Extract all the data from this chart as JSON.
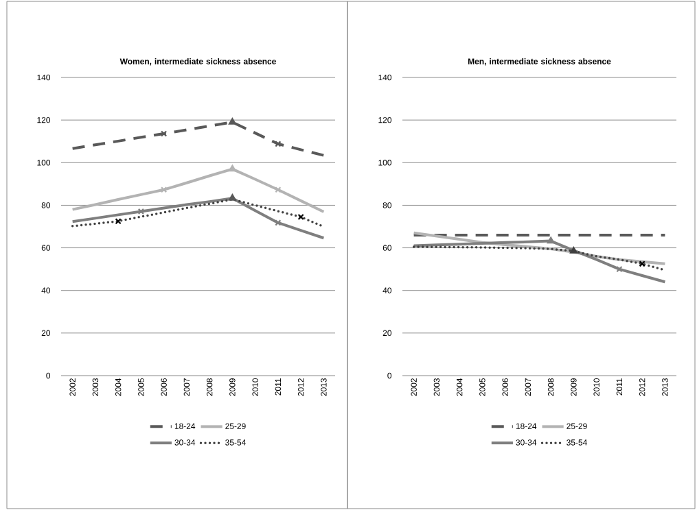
{
  "chart_data": [
    {
      "type": "line",
      "title": "Women, intermediate sickness absence",
      "categories": [
        "2002",
        "2003",
        "2004",
        "2005",
        "2006",
        "2007",
        "2008",
        "2009",
        "2010",
        "2011",
        "2012",
        "2013"
      ],
      "ylim": [
        0,
        140
      ],
      "yticks": [
        0,
        20,
        40,
        60,
        80,
        100,
        120,
        140
      ],
      "grid": "y",
      "legend": "bottom",
      "series": [
        {
          "name": "18-24",
          "color": "#595959",
          "line_style": "dashed",
          "values": [
            106.6,
            108.4,
            110.1,
            111.9,
            113.6,
            115.4,
            117.2,
            119.0,
            113.9,
            108.8,
            106.1,
            103.4
          ]
        },
        {
          "name": "25-29",
          "color": "#b3b3b3",
          "line_style": "solid",
          "values": [
            78.0,
            80.3,
            82.7,
            85.0,
            87.3,
            90.5,
            93.8,
            97.0,
            92.2,
            87.3,
            82.1,
            76.9
          ]
        },
        {
          "name": "30-34",
          "color": "#7f7f7f",
          "line_style": "solid",
          "values": [
            72.3,
            73.9,
            75.5,
            77.1,
            78.7,
            80.3,
            81.7,
            83.3,
            77.5,
            71.8,
            68.2,
            64.6
          ]
        },
        {
          "name": "35-54",
          "color": "#404040",
          "line_style": "dotted",
          "values": [
            70.2,
            71.3,
            72.5,
            74.6,
            76.6,
            78.7,
            80.7,
            82.8,
            80.0,
            77.2,
            74.5,
            69.9
          ]
        },
        {
          "type": "scatter",
          "marker": "cross",
          "color": "#595959",
          "values": [
            null,
            null,
            null,
            null,
            113.6,
            null,
            null,
            null,
            null,
            108.8,
            null,
            null
          ]
        },
        {
          "type": "scatter",
          "marker": "cross",
          "color": "#b3b3b3",
          "values": [
            null,
            null,
            null,
            null,
            87.3,
            null,
            null,
            null,
            null,
            87.3,
            null,
            null
          ]
        },
        {
          "type": "scatter",
          "marker": "cross",
          "color": "#7f7f7f",
          "values": [
            null,
            null,
            null,
            77.1,
            null,
            null,
            null,
            null,
            null,
            71.8,
            null,
            null
          ]
        },
        {
          "type": "scatter",
          "marker": "cross",
          "color": "#000000",
          "values": [
            null,
            null,
            72.5,
            null,
            null,
            null,
            null,
            null,
            null,
            null,
            74.5,
            null
          ]
        },
        {
          "type": "scatter",
          "marker": "triangle",
          "color": "#595959",
          "values": [
            null,
            null,
            null,
            null,
            null,
            null,
            null,
            119.0,
            null,
            null,
            null,
            null
          ]
        },
        {
          "type": "scatter",
          "marker": "triangle",
          "color": "#b3b3b3",
          "values": [
            null,
            null,
            null,
            null,
            null,
            null,
            null,
            97.0,
            null,
            null,
            null,
            null
          ]
        },
        {
          "type": "scatter",
          "marker": "triangle",
          "color": "#595959",
          "values": [
            null,
            null,
            null,
            null,
            null,
            null,
            null,
            83.3,
            null,
            null,
            null,
            null
          ]
        }
      ]
    },
    {
      "type": "line",
      "title": "Men, intermediate sickness absence",
      "categories": [
        "2002",
        "2003",
        "2004",
        "2005",
        "2006",
        "2007",
        "2008",
        "2009",
        "2010",
        "2011",
        "2012",
        "2013"
      ],
      "ylim": [
        0,
        140
      ],
      "yticks": [
        0,
        20,
        40,
        60,
        80,
        100,
        120,
        140
      ],
      "grid": "y",
      "legend": "bottom",
      "series": [
        {
          "name": "18-24",
          "color": "#595959",
          "line_style": "dashed",
          "values": [
            66,
            66,
            66,
            66,
            66,
            66,
            66,
            66,
            66,
            66,
            66,
            66
          ]
        },
        {
          "name": "25-29",
          "color": "#b3b3b3",
          "line_style": "solid",
          "values": [
            67.0,
            65.5,
            64.0,
            62.5,
            61.5,
            60.5,
            59.5,
            58.0,
            56.0,
            54.5,
            53.5,
            52.5
          ]
        },
        {
          "name": "30-34",
          "color": "#7f7f7f",
          "line_style": "solid",
          "values": [
            61.0,
            61.4,
            61.7,
            62.1,
            62.5,
            62.8,
            63.2,
            58.8,
            54.5,
            50.0,
            47.0,
            44.0
          ]
        },
        {
          "name": "35-54",
          "color": "#404040",
          "line_style": "dotted",
          "values": [
            60.5,
            60.4,
            60.3,
            60.2,
            60.0,
            59.8,
            59.5,
            58.5,
            56.0,
            54.5,
            52.5,
            49.5
          ]
        },
        {
          "type": "scatter",
          "marker": "cross",
          "color": "#7f7f7f",
          "values": [
            null,
            null,
            null,
            null,
            null,
            null,
            null,
            null,
            null,
            50.0,
            null,
            null
          ]
        },
        {
          "type": "scatter",
          "marker": "cross",
          "color": "#000000",
          "values": [
            null,
            null,
            null,
            null,
            null,
            null,
            null,
            null,
            null,
            null,
            52.5,
            null
          ]
        },
        {
          "type": "scatter",
          "marker": "triangle",
          "color": "#7f7f7f",
          "values": [
            null,
            null,
            null,
            null,
            null,
            null,
            63.2,
            null,
            null,
            null,
            null,
            null
          ]
        },
        {
          "type": "scatter",
          "marker": "triangle",
          "color": "#404040",
          "values": [
            null,
            null,
            null,
            null,
            null,
            null,
            null,
            58.5,
            null,
            null,
            null,
            null
          ]
        }
      ]
    }
  ]
}
